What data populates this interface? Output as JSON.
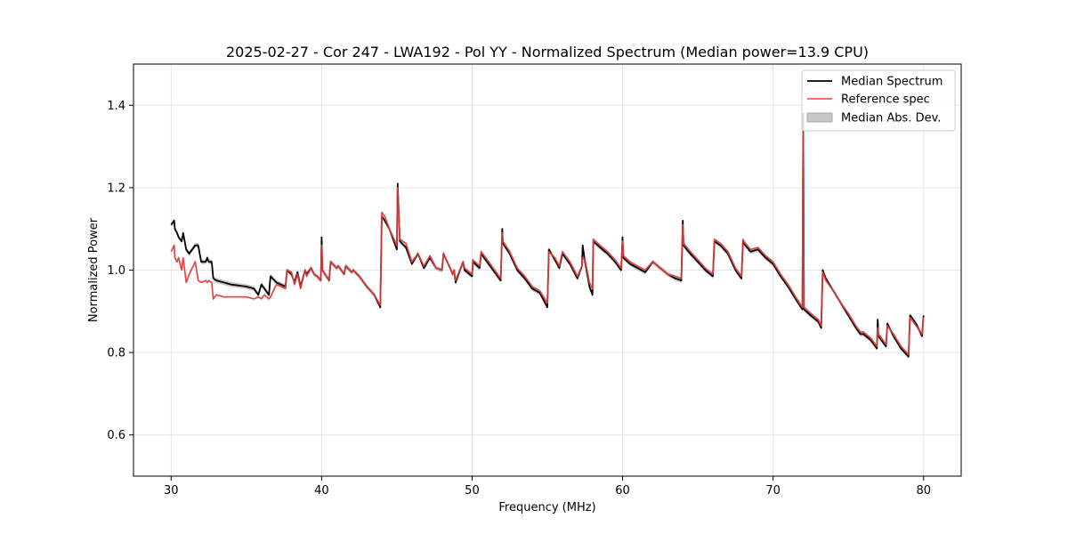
{
  "chart_data": {
    "type": "line",
    "title": "2025-02-27 - Cor 247 - LWA192 - Pol YY - Normalized Spectrum (Median power=13.9 CPU)",
    "xlabel": "Frequency (MHz)",
    "ylabel": "Normalized Power",
    "xlim": [
      27.5,
      82.5
    ],
    "ylim": [
      0.5,
      1.5
    ],
    "xticks": [
      30,
      40,
      50,
      60,
      70,
      80
    ],
    "yticks": [
      0.6,
      0.8,
      1.0,
      1.2,
      1.4
    ],
    "xtick_labels": [
      "30",
      "40",
      "50",
      "60",
      "70",
      "80"
    ],
    "ytick_labels": [
      "0.6",
      "0.8",
      "1.0",
      "1.2",
      "1.4"
    ],
    "grid": true,
    "legend_position": "top-right",
    "legend": [
      {
        "label": "Median Spectrum",
        "kind": "line",
        "color": "#000000"
      },
      {
        "label": "Reference spec",
        "kind": "line",
        "color": "#ff5a5a"
      },
      {
        "label": "Median Abs. Dev.",
        "kind": "patch",
        "color": "#c8c8c8"
      }
    ],
    "series": [
      {
        "name": "Median Spectrum",
        "color": "#000000",
        "x": [
          30.0,
          30.2,
          30.25,
          30.4,
          30.5,
          30.7,
          30.8,
          31.0,
          31.2,
          31.6,
          31.8,
          32.0,
          32.3,
          32.4,
          32.5,
          32.7,
          32.8,
          33.0,
          33.5,
          34.0,
          35.0,
          35.5,
          35.8,
          36.0,
          36.2,
          36.5,
          36.6,
          37.0,
          37.6,
          37.7,
          38.0,
          38.2,
          38.4,
          38.6,
          38.9,
          39.0,
          39.3,
          39.5,
          39.7,
          39.95,
          40.0,
          40.05,
          40.5,
          40.6,
          41.0,
          41.1,
          41.5,
          41.6,
          42.0,
          42.1,
          42.5,
          43.0,
          43.5,
          43.9,
          44.0,
          44.2,
          44.5,
          45.0,
          45.05,
          45.2,
          45.6,
          46.0,
          46.4,
          46.8,
          47.2,
          47.6,
          48.0,
          48.1,
          48.6,
          48.7,
          48.8,
          48.9,
          49.4,
          49.5,
          50.0,
          50.05,
          50.5,
          50.6,
          51.0,
          51.5,
          51.9,
          52.0,
          52.05,
          52.5,
          53.0,
          53.5,
          54.0,
          54.5,
          55.0,
          55.1,
          55.5,
          55.8,
          56.0,
          56.5,
          57.0,
          57.3,
          57.35,
          57.5,
          57.8,
          58.0,
          58.05,
          58.5,
          59.0,
          59.5,
          59.9,
          60.0,
          60.05,
          60.5,
          61.0,
          61.5,
          62.0,
          62.5,
          63.0,
          63.5,
          63.9,
          64.0,
          64.05,
          64.5,
          65.0,
          65.5,
          66.0,
          66.1,
          66.5,
          67.0,
          67.5,
          67.9,
          68.0,
          68.05,
          68.5,
          69.0,
          69.5,
          70.0,
          70.5,
          71.0,
          71.5,
          71.95,
          72.0,
          72.05,
          72.5,
          73.0,
          73.2,
          73.3,
          73.5,
          74.0,
          74.5,
          75.0,
          75.5,
          75.8,
          76.0,
          76.5,
          76.9,
          76.95,
          77.0,
          77.5,
          77.6,
          78.0,
          78.5,
          79.0,
          79.1,
          79.5,
          79.9,
          80.0
        ],
        "y": [
          1.11,
          1.12,
          1.1,
          1.09,
          1.08,
          1.07,
          1.09,
          1.05,
          1.04,
          1.06,
          1.06,
          1.02,
          1.02,
          1.03,
          1.02,
          1.02,
          0.98,
          0.975,
          0.97,
          0.965,
          0.96,
          0.955,
          0.94,
          0.965,
          0.955,
          0.94,
          0.985,
          0.97,
          0.96,
          1.0,
          0.99,
          0.97,
          0.995,
          0.96,
          1.0,
          0.99,
          1.005,
          0.99,
          0.985,
          0.975,
          1.08,
          1.0,
          0.975,
          1.02,
          1.005,
          1.01,
          0.99,
          1.01,
          0.995,
          1.0,
          0.985,
          0.96,
          0.94,
          0.91,
          1.13,
          1.12,
          1.1,
          1.05,
          1.21,
          1.07,
          1.055,
          1.015,
          1.04,
          1.005,
          1.03,
          1.005,
          1.0,
          1.04,
          1.0,
          0.99,
          1.0,
          0.97,
          1.02,
          1.0,
          0.985,
          1.02,
          1.005,
          1.04,
          1.02,
          0.995,
          0.975,
          1.1,
          1.065,
          1.04,
          1.0,
          0.98,
          0.955,
          0.945,
          0.91,
          1.05,
          1.025,
          1.005,
          1.04,
          1.015,
          0.98,
          1.01,
          1.06,
          1.02,
          0.96,
          0.94,
          1.07,
          1.055,
          1.04,
          1.02,
          1.0,
          1.08,
          1.03,
          1.015,
          1.005,
          0.995,
          1.02,
          1.005,
          0.99,
          0.98,
          0.975,
          1.12,
          1.06,
          1.04,
          1.02,
          1.0,
          0.985,
          1.07,
          1.06,
          1.04,
          1.0,
          0.98,
          1.07,
          1.065,
          1.045,
          1.05,
          1.03,
          1.015,
          0.985,
          0.96,
          0.93,
          0.905,
          1.38,
          0.905,
          0.89,
          0.875,
          0.86,
          1.0,
          0.98,
          0.95,
          0.92,
          0.89,
          0.86,
          0.845,
          0.845,
          0.83,
          0.81,
          0.88,
          0.84,
          0.815,
          0.87,
          0.84,
          0.81,
          0.79,
          0.89,
          0.87,
          0.84,
          0.89
        ]
      },
      {
        "name": "Reference spec",
        "color": "#ff5a5a",
        "x": [
          30.0,
          30.2,
          30.25,
          30.4,
          30.5,
          30.7,
          30.8,
          31.0,
          31.2,
          31.6,
          31.8,
          32.0,
          32.3,
          32.4,
          32.5,
          32.7,
          32.8,
          33.0,
          33.5,
          34.0,
          35.0,
          35.5,
          35.8,
          36.0,
          36.2,
          36.5,
          36.6,
          37.0,
          37.6,
          37.7,
          38.0,
          38.2,
          38.4,
          38.6,
          38.9,
          39.0,
          39.3,
          39.5,
          39.7,
          39.95,
          40.0,
          40.05,
          40.5,
          40.6,
          41.0,
          41.1,
          41.5,
          41.6,
          42.0,
          42.1,
          42.5,
          43.0,
          43.5,
          43.9,
          44.0,
          44.2,
          44.5,
          45.0,
          45.05,
          45.2,
          45.6,
          46.0,
          46.4,
          46.8,
          47.2,
          47.6,
          48.0,
          48.1,
          48.6,
          48.7,
          48.8,
          48.9,
          49.4,
          49.5,
          50.0,
          50.05,
          50.5,
          50.6,
          51.0,
          51.5,
          51.9,
          52.0,
          52.05,
          52.5,
          53.0,
          53.5,
          54.0,
          54.5,
          55.0,
          55.1,
          55.5,
          55.8,
          56.0,
          56.5,
          57.0,
          57.3,
          57.35,
          57.5,
          57.8,
          58.0,
          58.05,
          58.5,
          59.0,
          59.5,
          59.9,
          60.0,
          60.05,
          60.5,
          61.0,
          61.5,
          62.0,
          62.5,
          63.0,
          63.5,
          63.9,
          64.0,
          64.05,
          64.5,
          65.0,
          65.5,
          66.0,
          66.1,
          66.5,
          67.0,
          67.5,
          67.9,
          68.0,
          68.05,
          68.5,
          69.0,
          69.5,
          70.0,
          70.5,
          71.0,
          71.5,
          71.95,
          72.0,
          72.05,
          72.5,
          73.0,
          73.2,
          73.3,
          73.5,
          74.0,
          74.5,
          75.0,
          75.5,
          75.8,
          76.0,
          76.5,
          76.9,
          76.95,
          77.0,
          77.5,
          77.6,
          78.0,
          78.5,
          79.0,
          79.1,
          79.5,
          79.9,
          80.0
        ],
        "y": [
          1.045,
          1.06,
          1.03,
          1.02,
          1.03,
          1.0,
          1.03,
          0.97,
          0.99,
          1.02,
          0.975,
          0.97,
          0.975,
          0.97,
          0.975,
          0.97,
          0.93,
          0.94,
          0.935,
          0.935,
          0.935,
          0.93,
          0.935,
          0.93,
          0.94,
          0.93,
          0.935,
          0.965,
          0.955,
          1.0,
          0.995,
          0.965,
          0.99,
          0.955,
          1.0,
          0.985,
          1.005,
          0.99,
          0.985,
          0.975,
          1.06,
          1.0,
          0.975,
          1.02,
          1.005,
          1.01,
          0.99,
          1.01,
          0.995,
          1.0,
          0.985,
          0.96,
          0.94,
          0.915,
          1.14,
          1.13,
          1.1,
          1.06,
          1.2,
          1.075,
          1.065,
          1.02,
          1.04,
          1.01,
          1.035,
          1.005,
          1.0,
          1.04,
          1.0,
          0.99,
          1.0,
          0.975,
          1.02,
          1.005,
          0.99,
          1.025,
          1.01,
          1.045,
          1.025,
          1.0,
          0.98,
          1.09,
          1.07,
          1.045,
          1.005,
          0.985,
          0.96,
          0.95,
          0.92,
          1.045,
          1.03,
          1.01,
          1.045,
          1.02,
          0.985,
          1.01,
          1.03,
          1.025,
          0.97,
          0.955,
          1.075,
          1.06,
          1.045,
          1.025,
          1.005,
          1.07,
          1.035,
          1.02,
          1.01,
          1.0,
          1.02,
          1.005,
          0.99,
          0.985,
          0.98,
          1.11,
          1.065,
          1.045,
          1.025,
          1.005,
          0.99,
          1.075,
          1.065,
          1.045,
          1.005,
          0.985,
          1.075,
          1.07,
          1.05,
          1.055,
          1.035,
          1.02,
          0.99,
          0.965,
          0.935,
          0.91,
          1.34,
          0.91,
          0.895,
          0.88,
          0.865,
          0.995,
          0.975,
          0.95,
          0.92,
          0.895,
          0.865,
          0.85,
          0.85,
          0.835,
          0.815,
          0.86,
          0.845,
          0.82,
          0.865,
          0.845,
          0.815,
          0.795,
          0.885,
          0.865,
          0.845,
          0.885
        ]
      },
      {
        "name": "Median Abs. Dev.",
        "kind": "band",
        "color": "#c8c8c8",
        "base": "Median Spectrum",
        "halfwidth": 0.006
      }
    ]
  }
}
